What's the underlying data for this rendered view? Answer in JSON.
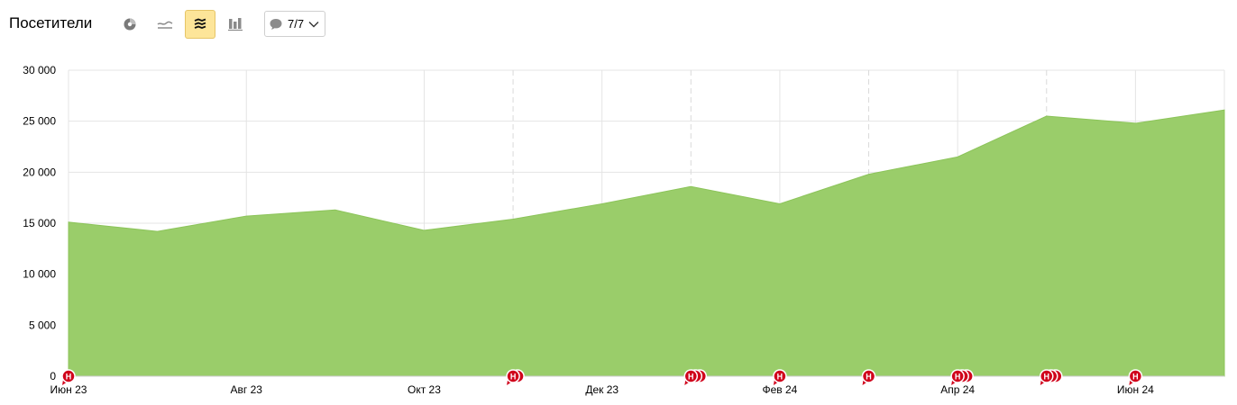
{
  "header": {
    "title": "Посетители",
    "notes_count": "7/7"
  },
  "toolbar": {
    "buttons": [
      {
        "name": "pie-chart-button",
        "icon": "pie-chart-icon",
        "active": false
      },
      {
        "name": "line-chart-button",
        "icon": "line-chart-icon",
        "active": false
      },
      {
        "name": "area-chart-button",
        "icon": "stacked-area-icon",
        "active": true
      },
      {
        "name": "bar-chart-button",
        "icon": "bar-chart-icon",
        "active": false
      }
    ]
  },
  "colors": {
    "area_fill": "#9acd6a",
    "area_stroke": "#8cc45a",
    "grid": "#e4e4e4",
    "note_marker": "#d0021b",
    "active_button": "#fde599"
  },
  "chart_data": {
    "type": "area",
    "ylim": [
      0,
      30000
    ],
    "y_ticks": [
      0,
      5000,
      10000,
      15000,
      20000,
      25000,
      30000
    ],
    "y_tick_labels": [
      "0",
      "5 000",
      "10 000",
      "15 000",
      "20 000",
      "25 000",
      "30 000"
    ],
    "x": [
      "2023-06",
      "2023-07",
      "2023-08",
      "2023-09",
      "2023-10",
      "2023-11",
      "2023-12",
      "2024-01",
      "2024-02",
      "2024-03",
      "2024-04",
      "2024-05",
      "2024-06",
      "2024-07"
    ],
    "x_tick_labels": [
      {
        "month_index": 0,
        "label": "Июн 23"
      },
      {
        "month_index": 2,
        "label": "Авг 23"
      },
      {
        "month_index": 4,
        "label": "Окт 23"
      },
      {
        "month_index": 6,
        "label": "Дек 23"
      },
      {
        "month_index": 8,
        "label": "Фев 24"
      },
      {
        "month_index": 10,
        "label": "Апр 24"
      },
      {
        "month_index": 12,
        "label": "Июн 24"
      }
    ],
    "dashed_gridlines_month_index": [
      5,
      7,
      9,
      11
    ],
    "series": [
      {
        "values": [
          15100,
          14200,
          15700,
          16300,
          14300,
          15400,
          16900,
          18600,
          16900,
          19800,
          21500,
          25500,
          24800,
          26100
        ]
      }
    ],
    "notes": [
      {
        "month_index": 0,
        "count": 1,
        "label": "Н"
      },
      {
        "month_index": 5,
        "count": 2,
        "label": "Н"
      },
      {
        "month_index": 7,
        "count": 3,
        "label": "Н"
      },
      {
        "month_index": 8,
        "count": 1,
        "label": "Н"
      },
      {
        "month_index": 9,
        "count": 1,
        "label": "Н"
      },
      {
        "month_index": 10,
        "count": 3,
        "label": "Н"
      },
      {
        "month_index": 11,
        "count": 3,
        "label": "Н"
      },
      {
        "month_index": 12,
        "count": 1,
        "label": "Н"
      }
    ]
  }
}
